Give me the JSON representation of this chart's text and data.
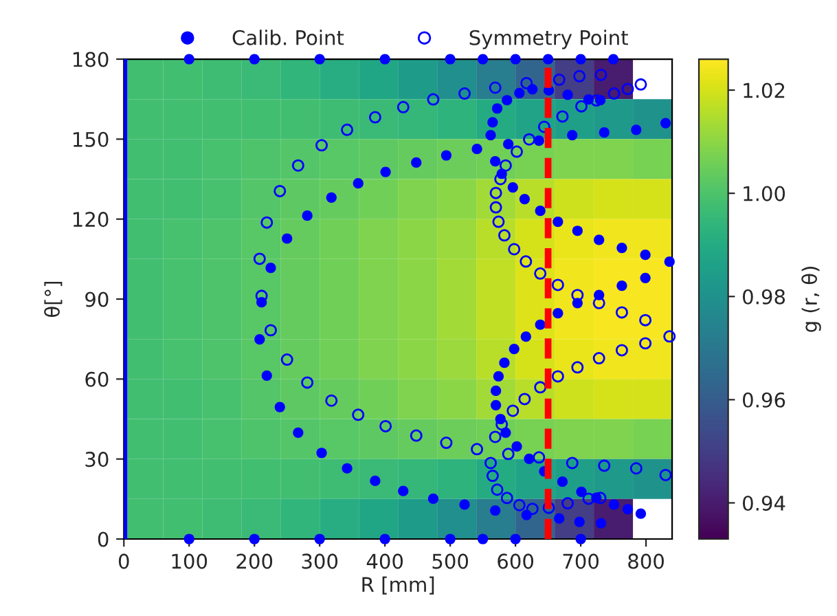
{
  "chart_data": {
    "type": "heatmap",
    "xlabel": "R [mm]",
    "ylabel": "θ[°]",
    "clabel": "g (r, θ)",
    "x": [
      30,
      90,
      150,
      210,
      270,
      330,
      390,
      450,
      510,
      570,
      630,
      690,
      750,
      810
    ],
    "y": [
      172.5,
      157.5,
      142.5,
      127.5,
      112.5,
      97.5,
      82.5,
      67.5,
      52.5,
      37.5,
      22.5,
      7.5
    ],
    "cells": [
      [
        0.998,
        0.998,
        0.997,
        0.996,
        0.994,
        0.991,
        0.988,
        0.984,
        0.979,
        0.972,
        0.963,
        0.95,
        0.94,
        null
      ],
      [
        0.998,
        0.998,
        0.998,
        0.998,
        0.998,
        0.997,
        0.996,
        0.995,
        0.993,
        0.99,
        0.987,
        0.985,
        0.983,
        0.98
      ],
      [
        0.998,
        0.998,
        0.999,
        1.0,
        1.001,
        1.002,
        1.003,
        1.004,
        1.005,
        1.006,
        1.007,
        1.008,
        1.008,
        1.007
      ],
      [
        0.998,
        0.998,
        0.999,
        1.001,
        1.003,
        1.004,
        1.006,
        1.008,
        1.01,
        1.013,
        1.016,
        1.019,
        1.02,
        1.02
      ],
      [
        0.998,
        0.999,
        1.0,
        1.002,
        1.004,
        1.006,
        1.008,
        1.01,
        1.012,
        1.016,
        1.02,
        1.023,
        1.024,
        1.024
      ],
      [
        0.998,
        0.999,
        1.0,
        1.002,
        1.004,
        1.006,
        1.008,
        1.01,
        1.013,
        1.017,
        1.021,
        1.024,
        1.025,
        1.025
      ],
      [
        0.998,
        0.999,
        1.0,
        1.002,
        1.004,
        1.006,
        1.008,
        1.01,
        1.013,
        1.017,
        1.021,
        1.024,
        1.025,
        1.025
      ],
      [
        0.998,
        0.999,
        1.0,
        1.002,
        1.004,
        1.006,
        1.008,
        1.01,
        1.012,
        1.016,
        1.02,
        1.023,
        1.024,
        1.024
      ],
      [
        0.998,
        0.998,
        0.999,
        1.001,
        1.003,
        1.004,
        1.006,
        1.008,
        1.01,
        1.013,
        1.016,
        1.019,
        1.02,
        1.02
      ],
      [
        0.998,
        0.998,
        0.999,
        1.0,
        1.001,
        1.002,
        1.003,
        1.004,
        1.005,
        1.006,
        1.007,
        1.008,
        1.008,
        1.007
      ],
      [
        0.998,
        0.998,
        0.998,
        0.998,
        0.998,
        0.997,
        0.996,
        0.995,
        0.993,
        0.99,
        0.987,
        0.985,
        0.983,
        0.98
      ],
      [
        0.998,
        0.998,
        0.997,
        0.996,
        0.994,
        0.991,
        0.988,
        0.984,
        0.979,
        0.972,
        0.963,
        0.95,
        0.94,
        null
      ]
    ],
    "clim": [
      0.933,
      1.026
    ],
    "cticks": [
      0.94,
      0.96,
      0.98,
      {
        "value": 1.0,
        "label": "1.00"
      },
      1.02
    ],
    "xlim": [
      0,
      840
    ],
    "xticks": [
      0,
      100,
      200,
      300,
      400,
      500,
      600,
      700,
      800
    ],
    "ylim": [
      0,
      180
    ],
    "yticks": [
      0,
      30,
      60,
      90,
      120,
      150,
      180
    ],
    "ref_lines": [
      {
        "axis": "x",
        "value": 0,
        "color": "#0000ff",
        "line_style": "solid"
      },
      {
        "axis": "x",
        "value": 650,
        "color": "#ff0000",
        "line_style": "dashed"
      }
    ],
    "legend": "top",
    "series": [
      {
        "name": "Calib. Point",
        "type": "scatter",
        "color": "#0000ff",
        "marker": "circle",
        "x": [
          100,
          200,
          300,
          400,
          500,
          550,
          600,
          700,
          100,
          200,
          300,
          400,
          500,
          550,
          600,
          650,
          700,
          750,
          401,
          359,
          318,
          281,
          250,
          225,
          211,
          208,
          219,
          239,
          267,
          303,
          342,
          385,
          428,
          474,
          522,
          569,
          617,
          667,
          698,
          731,
          448,
          494,
          541,
          589,
          636,
          687,
          736,
          785,
          830,
          572,
          587,
          606,
          626,
          651,
          680,
          712,
          730,
          565,
          562,
          569,
          579,
          596,
          614,
          638,
          665,
          695,
          728,
          763,
          799,
          836,
          799,
          763,
          728,
          695,
          665,
          638,
          616,
          598,
          583,
          574,
          570,
          570,
          577,
          585,
          602,
          621,
          644,
          672,
          701,
          724,
          751,
          772,
          792
        ],
        "values": [
          0,
          0,
          0,
          0,
          0,
          0,
          0,
          0,
          180,
          180,
          180,
          180,
          180,
          180,
          180,
          180,
          180,
          180,
          137.7,
          133.4,
          128.1,
          121.3,
          112.7,
          101.7,
          88.8,
          74.9,
          61.3,
          49.5,
          39.9,
          32.3,
          26.5,
          21.8,
          18.0,
          15.1,
          12.9,
          10.7,
          9.0,
          7.7,
          6.4,
          5.9,
          141.2,
          143.9,
          146.3,
          148.1,
          149.4,
          151.5,
          152.5,
          153.5,
          156,
          161.5,
          164.6,
          167.3,
          168.7,
          168.3,
          166.6,
          164.9,
          164.6,
          156.3,
          151.5,
          141.7,
          137,
          131.9,
          127.5,
          123.1,
          119,
          115.6,
          112.2,
          109.2,
          106.6,
          104,
          97.9,
          95,
          91.5,
          88.5,
          84.7,
          80.4,
          75.9,
          71.3,
          66.1,
          61,
          55.6,
          50.2,
          45,
          39.9,
          34.7,
          30.1,
          25.4,
          21.5,
          17.7,
          15.5,
          12.9,
          11.2,
          9.5
        ]
      },
      {
        "name": "Symmetry Point",
        "type": "scatter",
        "color": "#0000ff",
        "marker": "circle-open",
        "x": [
          401,
          359,
          318,
          281,
          250,
          225,
          211,
          208,
          219,
          239,
          267,
          303,
          342,
          385,
          428,
          474,
          522,
          569,
          617,
          667,
          698,
          731,
          448,
          494,
          541,
          589,
          636,
          687,
          736,
          785,
          830,
          572,
          587,
          606,
          626,
          651,
          680,
          712,
          730,
          565,
          562,
          569,
          579,
          596,
          614,
          638,
          665,
          695,
          728,
          763,
          799,
          836,
          799,
          763,
          728,
          695,
          665,
          638,
          616,
          598,
          583,
          574,
          570,
          570,
          577,
          585,
          602,
          621,
          644,
          672,
          701,
          724,
          751,
          772,
          792
        ],
        "values": [
          42.3,
          46.6,
          51.9,
          58.7,
          67.3,
          78.3,
          91.2,
          105.1,
          118.7,
          130.5,
          140.1,
          147.7,
          153.5,
          158.2,
          162,
          164.9,
          167.1,
          169.3,
          171,
          172.3,
          173.6,
          174.1,
          38.8,
          36.1,
          33.7,
          31.9,
          30.6,
          28.5,
          27.5,
          26.5,
          24,
          18.5,
          15.4,
          12.7,
          11.3,
          11.7,
          13.4,
          15.1,
          15.4,
          23.7,
          28.5,
          38.3,
          43,
          48.1,
          52.5,
          56.9,
          61,
          64.4,
          67.8,
          70.8,
          73.4,
          76,
          82.1,
          85,
          88.5,
          91.5,
          95.3,
          99.6,
          104.1,
          108.7,
          113.9,
          119,
          124.4,
          129.8,
          135,
          140.1,
          145.3,
          149.9,
          154.6,
          158.5,
          162.3,
          164.5,
          167.1,
          168.8,
          170.5
        ]
      }
    ]
  }
}
